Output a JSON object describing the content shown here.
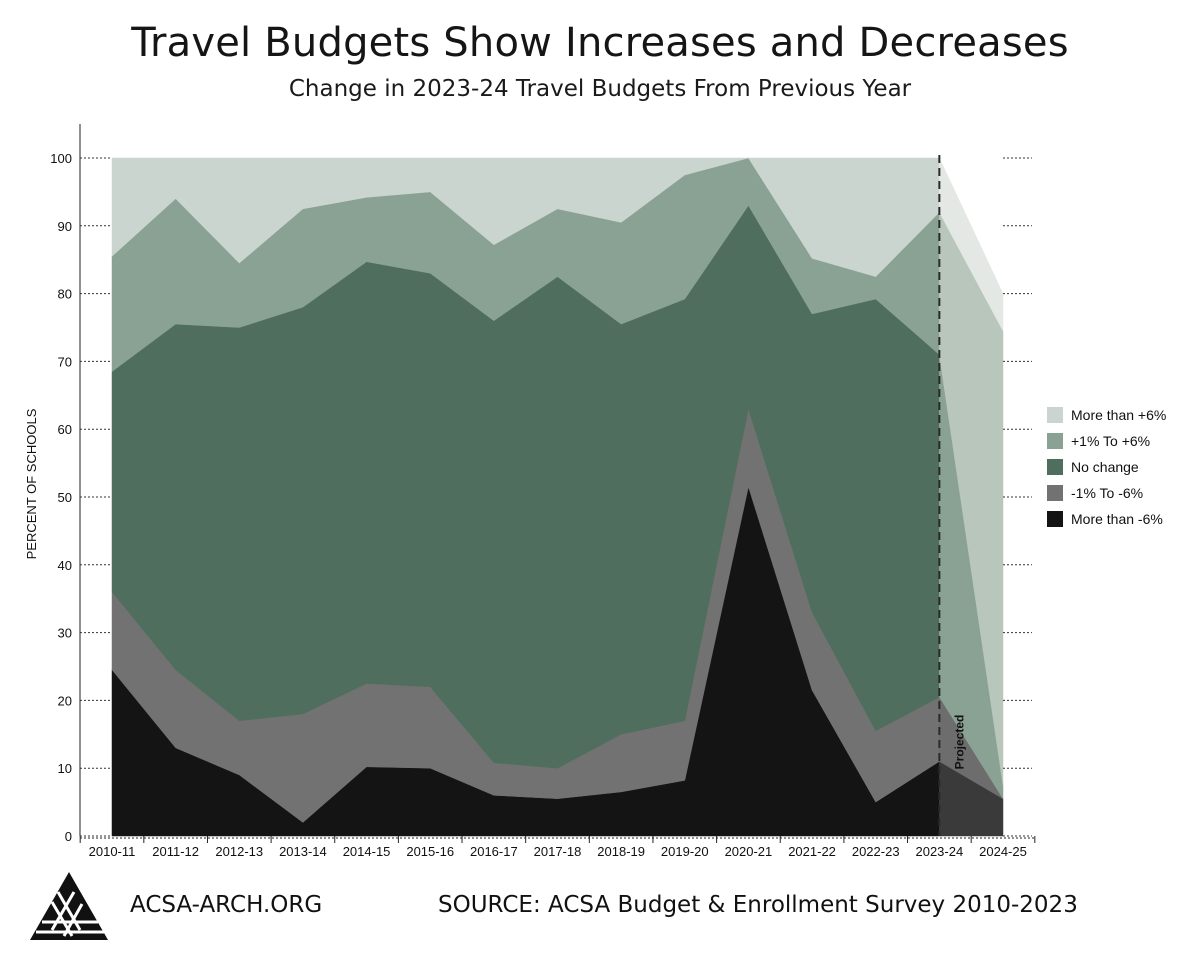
{
  "header": {
    "title": "Travel Budgets Show Increases and Decreases",
    "subtitle": "Change in 2023-24 Travel Budgets From Previous Year"
  },
  "footer": {
    "site": "ACSA-ARCH.ORG",
    "source": "SOURCE: ACSA Budget & Enrollment Survey 2010-2023",
    "logo_icon": "acsa-triangle-logo-icon"
  },
  "chart_data": {
    "type": "area",
    "stacked": true,
    "ylabel": "PERCENT OF SCHOOLS",
    "xlabel": "",
    "ylim": [
      0,
      100
    ],
    "yticks": [
      0,
      10,
      20,
      30,
      40,
      50,
      60,
      70,
      80,
      90,
      100
    ],
    "grid": "dotted horizontal at y ticks on right",
    "legend_position": "right",
    "categories": [
      "2010-11",
      "2011-12",
      "2012-13",
      "2013-14",
      "2014-15",
      "2015-16",
      "2016-17",
      "2017-18",
      "2018-19",
      "2019-20",
      "2020-21",
      "2021-22",
      "2022-23",
      "2023-24",
      "2024-25"
    ],
    "projected_from": "2023-24",
    "projected_label": "Projected",
    "series": [
      {
        "name": "More than -6%",
        "color": "#141414",
        "projected_color": "#3a3a3a",
        "values": [
          24.5,
          13,
          9,
          2,
          10.2,
          10,
          6,
          5.5,
          6.5,
          8.2,
          51.5,
          21.5,
          5,
          11,
          5.5
        ]
      },
      {
        "name": "-1% To -6%",
        "color": "#727272",
        "projected_color": "#6d6d6d",
        "values": [
          11.5,
          11.5,
          8,
          16,
          12.3,
          12,
          4.8,
          4.5,
          8.5,
          8.8,
          11.5,
          11.5,
          10.5,
          9.5,
          0
        ]
      },
      {
        "name": "No change",
        "color": "#4f6e5e",
        "projected_color": "#4f6e5e",
        "values": [
          32.5,
          51,
          58,
          60,
          62.2,
          61,
          65.2,
          72.5,
          60.5,
          62.2,
          30,
          44,
          63.7,
          50.5,
          2
        ]
      },
      {
        "name": "+1% To +6%",
        "color": "#8aa293",
        "projected_color": "#8aa293",
        "values": [
          17,
          18.5,
          9.5,
          14.5,
          9.5,
          12,
          11.2,
          10,
          15,
          18.3,
          7,
          8.2,
          3.3,
          21,
          67
        ]
      },
      {
        "name": "More than +6%",
        "color": "#cbd5cf",
        "projected_color": "#e4e8e5",
        "values": [
          14.5,
          6,
          15.5,
          7.5,
          5.8,
          5,
          12.8,
          7.5,
          9.5,
          2.5,
          0,
          14.8,
          17.5,
          8,
          5.5
        ]
      }
    ],
    "projected_series_colors": {
      "More than +6%": "#e4e8e5",
      "+1% To +6%": "#b8c6bc",
      "No change": "#8aa293",
      "-1% To -6%": "#6d6d6d",
      "More than -6%": "#3a3a3a"
    }
  }
}
